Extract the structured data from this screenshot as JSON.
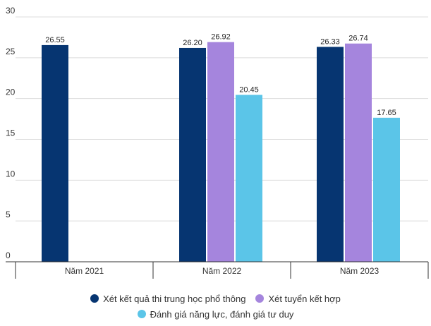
{
  "chart_data": {
    "type": "bar",
    "categories": [
      "Năm 2021",
      "Năm 2022",
      "Năm 2023"
    ],
    "series": [
      {
        "name": "Xét kết quả thi trung học phổ thông",
        "color": "#063571",
        "values": [
          26.55,
          26.2,
          26.33
        ]
      },
      {
        "name": "Xét tuyển kết hợp",
        "color": "#A585DD",
        "values": [
          null,
          26.92,
          26.74
        ]
      },
      {
        "name": "Đánh giá năng lực, đánh giá tư duy",
        "color": "#5BC5E8",
        "values": [
          null,
          20.45,
          17.65
        ]
      }
    ],
    "value_labels": [
      [
        "26.55",
        "26.20",
        "26.33"
      ],
      [
        "",
        "26.92",
        "26.74"
      ],
      [
        "",
        "20.45",
        "17.65"
      ]
    ],
    "yticks": [
      "0",
      "5",
      "10",
      "15",
      "20",
      "25",
      "30"
    ],
    "ylim": [
      0,
      30
    ],
    "grid": true,
    "legend_position": "bottom"
  }
}
